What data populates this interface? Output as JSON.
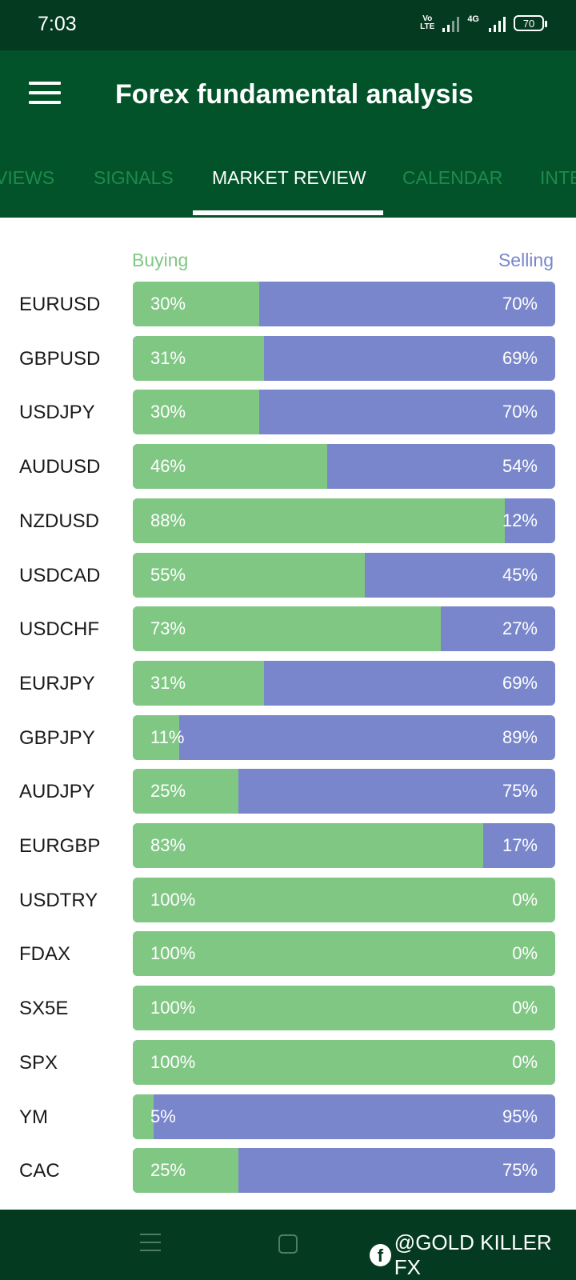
{
  "status_bar": {
    "time": "7:03",
    "volte_top": "Vo",
    "volte_bottom": "LTE",
    "network": "4G",
    "battery": "70"
  },
  "app_bar": {
    "title": "Forex fundamental analysis",
    "menu_icon": "hamburger-menu-icon"
  },
  "tabs": [
    {
      "label": "VIEWS",
      "active": false
    },
    {
      "label": "SIGNALS",
      "active": false
    },
    {
      "label": "MARKET REVIEW",
      "active": true
    },
    {
      "label": "CALENDAR",
      "active": false
    },
    {
      "label": "INTE",
      "active": false
    }
  ],
  "table": {
    "buying_label": "Buying",
    "selling_label": "Selling",
    "rows": [
      {
        "pair": "EURUSD",
        "buy": "30%",
        "sell": "70%",
        "buy_value": 30
      },
      {
        "pair": "GBPUSD",
        "buy": "31%",
        "sell": "69%",
        "buy_value": 31
      },
      {
        "pair": "USDJPY",
        "buy": "30%",
        "sell": "70%",
        "buy_value": 30
      },
      {
        "pair": "AUDUSD",
        "buy": "46%",
        "sell": "54%",
        "buy_value": 46
      },
      {
        "pair": "NZDUSD",
        "buy": "88%",
        "sell": "12%",
        "buy_value": 88
      },
      {
        "pair": "USDCAD",
        "buy": "55%",
        "sell": "45%",
        "buy_value": 55
      },
      {
        "pair": "USDCHF",
        "buy": "73%",
        "sell": "27%",
        "buy_value": 73
      },
      {
        "pair": "EURJPY",
        "buy": "31%",
        "sell": "69%",
        "buy_value": 31
      },
      {
        "pair": "GBPJPY",
        "buy": "11%",
        "sell": "89%",
        "buy_value": 11
      },
      {
        "pair": "AUDJPY",
        "buy": "25%",
        "sell": "75%",
        "buy_value": 25
      },
      {
        "pair": "EURGBP",
        "buy": "83%",
        "sell": "17%",
        "buy_value": 83
      },
      {
        "pair": "USDTRY",
        "buy": "100%",
        "sell": "0%",
        "buy_value": 100
      },
      {
        "pair": "FDAX",
        "buy": "100%",
        "sell": "0%",
        "buy_value": 100
      },
      {
        "pair": "SX5E",
        "buy": "100%",
        "sell": "0%",
        "buy_value": 100
      },
      {
        "pair": "SPX",
        "buy": "100%",
        "sell": "0%",
        "buy_value": 100
      },
      {
        "pair": "YM",
        "buy": "5%",
        "sell": "95%",
        "buy_value": 5
      },
      {
        "pair": "CAC",
        "buy": "25%",
        "sell": "75%",
        "buy_value": 25
      }
    ]
  },
  "colors": {
    "status_bar": "#043a1f",
    "app_bar": "#02532a",
    "buying": "#81c784",
    "selling": "#7986cb"
  },
  "nav_bar": {
    "menu_icon": "recent-apps-icon",
    "home_icon": "home-square-icon"
  },
  "watermark": {
    "icon": "facebook-icon",
    "icon_glyph": "f",
    "text": "@GOLD KILLER FX"
  }
}
